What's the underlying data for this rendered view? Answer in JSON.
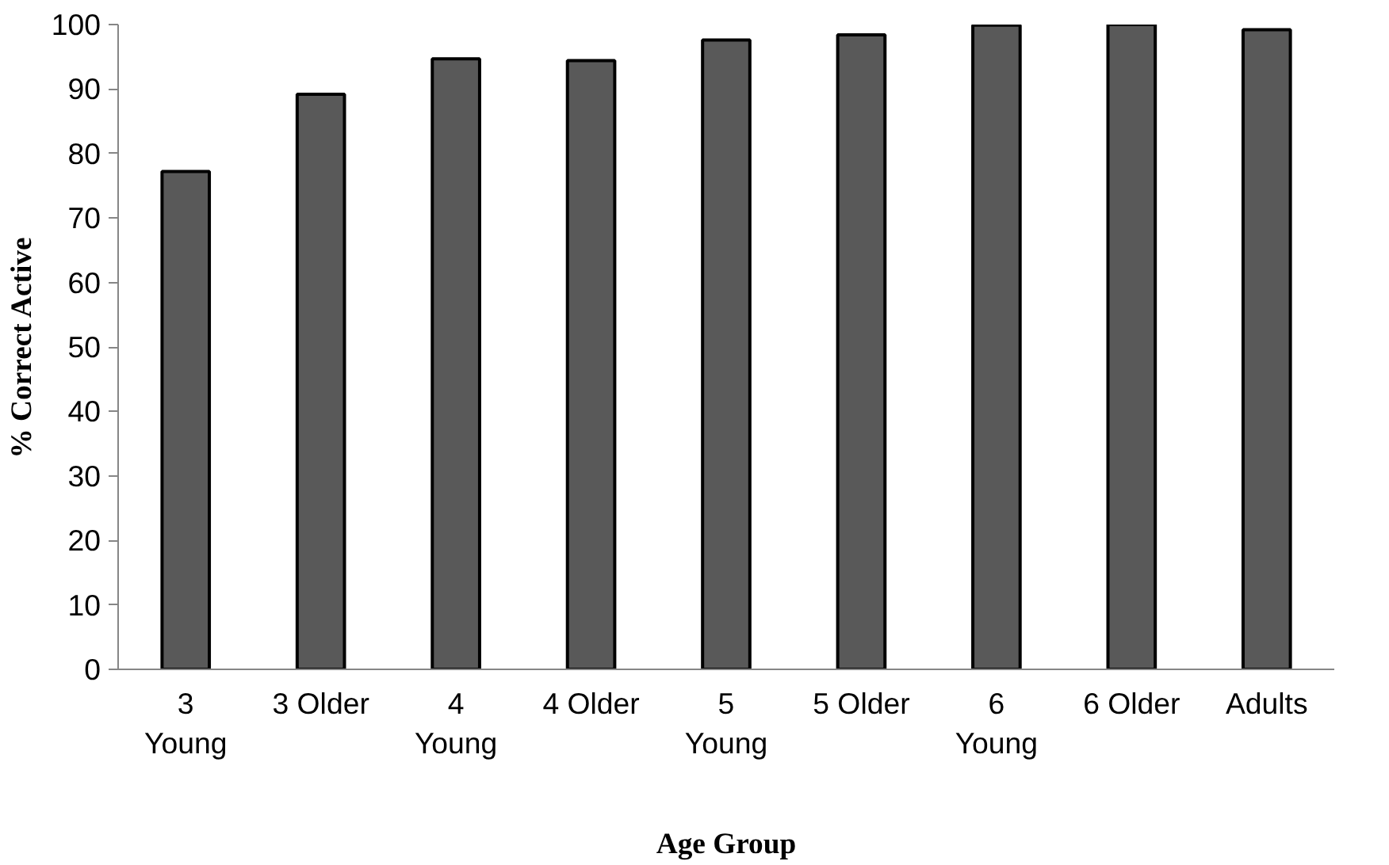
{
  "chart_data": {
    "type": "bar",
    "xlabel": "Age Group",
    "ylabel": "% Correct Active",
    "categories": [
      "3\nYoung",
      "3 Older",
      "4\nYoung",
      "4 Older",
      "5\nYoung",
      "5 Older",
      "6\nYoung",
      "6 Older",
      "Adults"
    ],
    "values": [
      77.2,
      89.2,
      94.7,
      94.4,
      97.6,
      98.4,
      99.9,
      100,
      99.2
    ],
    "color": "#595959",
    "ylim": [
      0,
      100
    ],
    "yticks": [
      0,
      10,
      20,
      30,
      40,
      50,
      60,
      70,
      80,
      90,
      100
    ],
    "grid": false
  }
}
